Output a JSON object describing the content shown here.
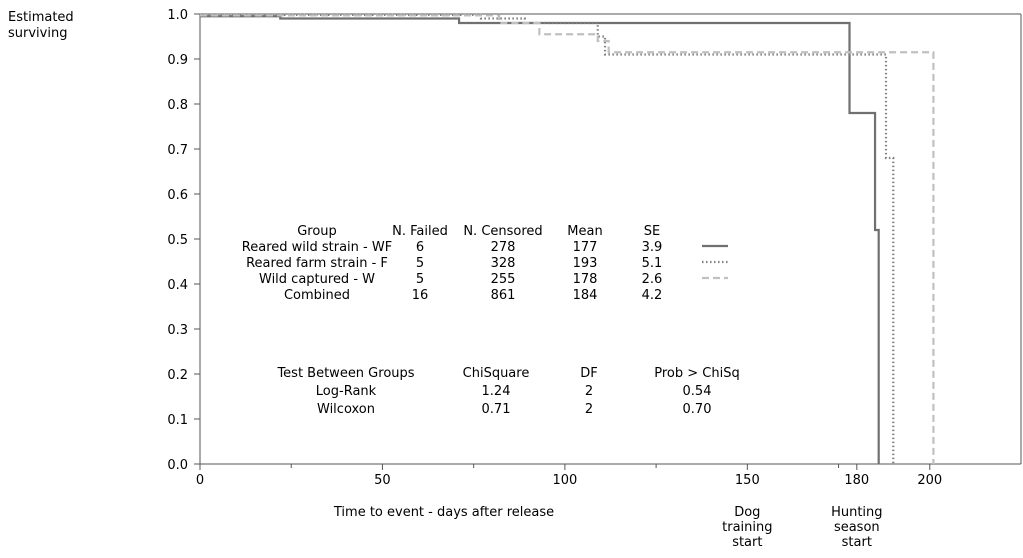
{
  "chart_data": {
    "type": "line",
    "subtype": "kaplan-meier survival (step)",
    "ylabel": "Estimated\nsurviving",
    "xlabel": "Time to event - days after release",
    "xlim": [
      0,
      225
    ],
    "ylim": [
      0.0,
      1.0
    ],
    "x_ticks": [
      0,
      50,
      100,
      150,
      180,
      200
    ],
    "x_tick_labels": [
      "0",
      "50",
      "100",
      "150",
      "180",
      "200"
    ],
    "y_ticks": [
      0.0,
      0.1,
      0.2,
      0.3,
      0.4,
      0.5,
      0.6,
      0.7,
      0.8,
      0.9,
      1.0
    ],
    "y_tick_labels": [
      "0.0",
      "0.1",
      "0.2",
      "0.3",
      "0.4",
      "0.5",
      "0.6",
      "0.7",
      "0.8",
      "0.9",
      "1.0"
    ],
    "x_annotations": [
      {
        "x": 150,
        "lines": [
          "Dog",
          "training",
          "start"
        ]
      },
      {
        "x": 180,
        "lines": [
          "Hunting",
          "season",
          "start"
        ]
      }
    ],
    "series": [
      {
        "name": "Reared wild strain - WF",
        "style": "solid",
        "color": "#707070",
        "steps": [
          [
            0,
            0.995
          ],
          [
            22,
            0.99
          ],
          [
            71,
            0.98
          ],
          [
            178,
            0.78
          ],
          [
            185,
            0.52
          ],
          [
            186,
            0.0
          ]
        ]
      },
      {
        "name": "Reared farm strain - F",
        "style": "dotted",
        "color": "#808080",
        "steps": [
          [
            0,
            0.998
          ],
          [
            77,
            0.99
          ],
          [
            89,
            0.98
          ],
          [
            109,
            0.95
          ],
          [
            111,
            0.91
          ],
          [
            188,
            0.68
          ],
          [
            190,
            0.0
          ]
        ]
      },
      {
        "name": "Wild captured - W",
        "style": "dashed",
        "color": "#c0c0c0",
        "steps": [
          [
            0,
            0.997
          ],
          [
            82,
            0.98
          ],
          [
            93,
            0.955
          ],
          [
            109,
            0.94
          ],
          [
            112,
            0.915
          ],
          [
            201,
            0.0
          ]
        ]
      }
    ],
    "summary_table": {
      "headers": [
        "Group",
        "N. Failed",
        "N. Censored",
        "Mean",
        "SE"
      ],
      "rows": [
        {
          "group": "Reared wild strain - WF",
          "failed": "6",
          "censored": "278",
          "mean": "177",
          "se": "3.9",
          "line": "solid"
        },
        {
          "group": "Reared farm strain - F",
          "failed": "5",
          "censored": "328",
          "mean": "193",
          "se": "5.1",
          "line": "dotted"
        },
        {
          "group": "Wild captured - W",
          "failed": "5",
          "censored": "255",
          "mean": "178",
          "se": "2.6",
          "line": "dashed"
        },
        {
          "group": "Combined",
          "failed": "16",
          "censored": "861",
          "mean": "184",
          "se": "4.2",
          "line": ""
        }
      ]
    },
    "test_table": {
      "headers": [
        "Test Between Groups",
        "ChiSquare",
        "DF",
        "Prob > ChiSq"
      ],
      "rows": [
        {
          "test": "Log-Rank",
          "chisq": "1.24",
          "df": "2",
          "p": "0.54"
        },
        {
          "test": "Wilcoxon",
          "chisq": "0.71",
          "df": "2",
          "p": "0.70"
        }
      ]
    }
  }
}
